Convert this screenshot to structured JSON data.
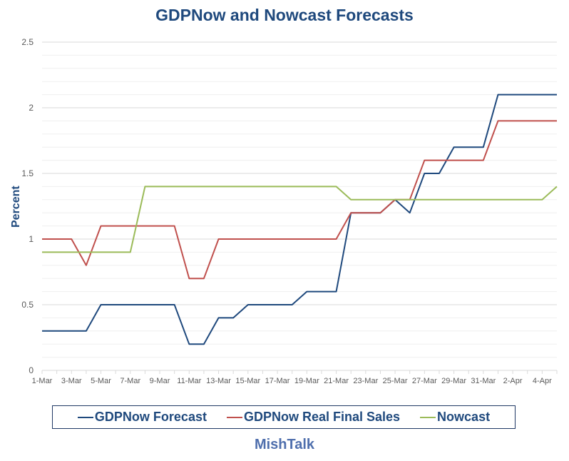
{
  "chart_data": {
    "type": "line",
    "title": "GDPNow and Nowcast Forecasts",
    "ylabel": "Percent",
    "xlabel": "",
    "ylim": [
      0,
      2.5
    ],
    "yticks": [
      "0",
      "0.5",
      "1",
      "1.5",
      "2",
      "2.5"
    ],
    "grid": "horizontal major and minor",
    "legend": "bottom",
    "x": [
      "1-Mar",
      "2-Mar",
      "3-Mar",
      "4-Mar",
      "5-Mar",
      "6-Mar",
      "7-Mar",
      "8-Mar",
      "9-Mar",
      "10-Mar",
      "11-Mar",
      "12-Mar",
      "13-Mar",
      "14-Mar",
      "15-Mar",
      "16-Mar",
      "17-Mar",
      "18-Mar",
      "19-Mar",
      "20-Mar",
      "21-Mar",
      "22-Mar",
      "23-Mar",
      "24-Mar",
      "25-Mar",
      "26-Mar",
      "27-Mar",
      "28-Mar",
      "29-Mar",
      "30-Mar",
      "31-Mar",
      "1-Apr",
      "2-Apr",
      "3-Apr",
      "4-Apr",
      "5-Apr"
    ],
    "xtick_labels": [
      "1-Mar",
      "3-Mar",
      "5-Mar",
      "7-Mar",
      "9-Mar",
      "11-Mar",
      "13-Mar",
      "15-Mar",
      "17-Mar",
      "19-Mar",
      "21-Mar",
      "23-Mar",
      "25-Mar",
      "27-Mar",
      "29-Mar",
      "31-Mar",
      "2-Apr",
      "4-Apr"
    ],
    "series": [
      {
        "name": "GDPNow Forecast",
        "color": "#1f497d",
        "values": [
          0.3,
          0.3,
          0.3,
          0.3,
          0.5,
          0.5,
          0.5,
          0.5,
          0.5,
          0.5,
          0.2,
          0.2,
          0.4,
          0.4,
          0.5,
          0.5,
          0.5,
          0.5,
          0.6,
          0.6,
          0.6,
          1.2,
          1.2,
          1.2,
          1.3,
          1.2,
          1.5,
          1.5,
          1.7,
          1.7,
          1.7,
          2.1,
          2.1,
          2.1,
          2.1,
          2.1
        ]
      },
      {
        "name": "GDPNow Real Final Sales",
        "color": "#c0504d",
        "values": [
          1.0,
          1.0,
          1.0,
          0.8,
          1.1,
          1.1,
          1.1,
          1.1,
          1.1,
          1.1,
          0.7,
          0.7,
          1.0,
          1.0,
          1.0,
          1.0,
          1.0,
          1.0,
          1.0,
          1.0,
          1.0,
          1.2,
          1.2,
          1.2,
          1.3,
          1.3,
          1.6,
          1.6,
          1.6,
          1.6,
          1.6,
          1.9,
          1.9,
          1.9,
          1.9,
          1.9
        ]
      },
      {
        "name": "Nowcast",
        "color": "#9bbb59",
        "values": [
          0.9,
          0.9,
          0.9,
          0.9,
          0.9,
          0.9,
          0.9,
          1.4,
          1.4,
          1.4,
          1.4,
          1.4,
          1.4,
          1.4,
          1.4,
          1.4,
          1.4,
          1.4,
          1.4,
          1.4,
          1.4,
          1.3,
          1.3,
          1.3,
          1.3,
          1.3,
          1.3,
          1.3,
          1.3,
          1.3,
          1.3,
          1.3,
          1.3,
          1.3,
          1.3,
          1.4
        ]
      }
    ]
  },
  "footer": "MishTalk"
}
